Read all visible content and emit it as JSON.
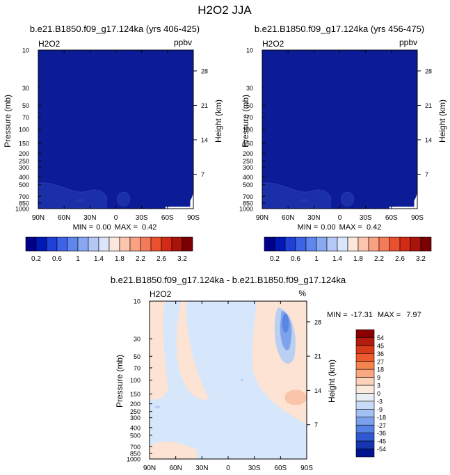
{
  "figure": {
    "title": "H2O2 JJA"
  },
  "chart_data": [
    {
      "type": "heatmap",
      "title": "b.e21.B1850.f09_g17.124ka (yrs 406-425)",
      "left_label": "H2O2",
      "right_label": "ppbv",
      "ylabel": "Pressure (mb)",
      "ylabel_right": "Height (km)",
      "x_ticks": [
        "90N",
        "60N",
        "30N",
        "0",
        "30S",
        "60S",
        "90S"
      ],
      "y_ticks": [
        "10",
        "30",
        "50",
        "70",
        "100",
        "150",
        "200",
        "250",
        "300",
        "400",
        "500",
        "700",
        "850",
        "1000"
      ],
      "height_ticks": [
        "28",
        "21",
        "14",
        "7"
      ],
      "stats": {
        "min_label": "MIN =",
        "min": "0.00",
        "max_label": "MAX =",
        "max": "0.42"
      },
      "colorbar": {
        "orientation": "horizontal",
        "labels": [
          "0.2",
          "0.6",
          "1",
          "1.4",
          "1.8",
          "2.2",
          "2.6",
          "3.2"
        ],
        "colors": [
          "#00008b",
          "#0018b4",
          "#1f3fd6",
          "#3d63e6",
          "#5f86ee",
          "#8aa8f2",
          "#b3c8f6",
          "#dbe6fb",
          "#fde6dc",
          "#fbc6ad",
          "#f8a283",
          "#f37b5a",
          "#ea4f2f",
          "#d22a14",
          "#a8130a",
          "#7a0003"
        ]
      },
      "field_color": "#0c1c96"
    },
    {
      "type": "heatmap",
      "title": "b.e21.B1850.f09_g17.124ka (yrs 456-475)",
      "left_label": "H2O2",
      "right_label": "ppbv",
      "ylabel": "Pressure (mb)",
      "ylabel_right": "Height (km)",
      "x_ticks": [
        "90N",
        "60N",
        "30N",
        "0",
        "30S",
        "60S",
        "90S"
      ],
      "y_ticks": [
        "10",
        "30",
        "50",
        "70",
        "100",
        "150",
        "200",
        "250",
        "300",
        "400",
        "500",
        "700",
        "850",
        "1000"
      ],
      "height_ticks": [
        "28",
        "21",
        "14",
        "7"
      ],
      "stats": {
        "min_label": "MIN =",
        "min": "0.00",
        "max_label": "MAX =",
        "max": "0.42"
      },
      "colorbar": {
        "orientation": "horizontal",
        "labels": [
          "0.2",
          "0.6",
          "1",
          "1.4",
          "1.8",
          "2.2",
          "2.6",
          "3.2"
        ],
        "colors": [
          "#00008b",
          "#0018b4",
          "#1f3fd6",
          "#3d63e6",
          "#5f86ee",
          "#8aa8f2",
          "#b3c8f6",
          "#dbe6fb",
          "#fde6dc",
          "#fbc6ad",
          "#f8a283",
          "#f37b5a",
          "#ea4f2f",
          "#d22a14",
          "#a8130a",
          "#7a0003"
        ]
      },
      "field_color": "#0c1c96"
    },
    {
      "type": "heatmap",
      "title": "b.e21.B1850.f09_g17.124ka - b.e21.B1850.f09_g17.124ka",
      "left_label": "H2O2",
      "right_label": "%",
      "ylabel": "Pressure (mb)",
      "ylabel_right": "Height (km)",
      "x_ticks": [
        "90N",
        "60N",
        "30N",
        "0",
        "30S",
        "60S",
        "90S"
      ],
      "y_ticks": [
        "10",
        "30",
        "50",
        "70",
        "100",
        "150",
        "200",
        "250",
        "300",
        "400",
        "500",
        "700",
        "850",
        "1000"
      ],
      "height_ticks": [
        "28",
        "21",
        "14",
        "7"
      ],
      "stats": {
        "min_label": "MIN = ",
        "min": "-17.31",
        "max_label": "MAX =",
        "max": "7.97"
      },
      "colorbar": {
        "orientation": "vertical",
        "labels": [
          "54",
          "45",
          "36",
          "27",
          "18",
          "9",
          "3",
          "0",
          "-3",
          "-9",
          "-18",
          "-27",
          "-36",
          "-45",
          "-54"
        ],
        "colors": [
          "#8b0000",
          "#b31b0c",
          "#d83a1a",
          "#ee5a30",
          "#f5834f",
          "#f9a882",
          "#fdd2bb",
          "#fce9dd",
          "#e9eef5",
          "#c8daf7",
          "#a3c0f2",
          "#7ca1ec",
          "#5580e4",
          "#3058d2",
          "#1536b0",
          "#00148e"
        ]
      },
      "field_color": "#d6e6fb"
    }
  ]
}
